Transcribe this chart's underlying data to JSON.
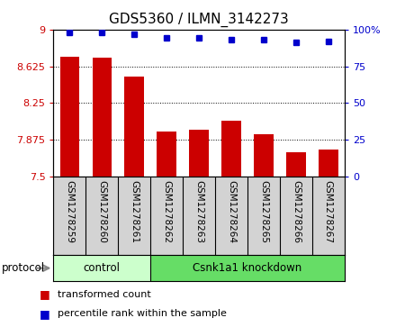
{
  "title": "GDS5360 / ILMN_3142273",
  "samples": [
    "GSM1278259",
    "GSM1278260",
    "GSM1278261",
    "GSM1278262",
    "GSM1278263",
    "GSM1278264",
    "GSM1278265",
    "GSM1278266",
    "GSM1278267"
  ],
  "bar_values": [
    8.72,
    8.71,
    8.52,
    7.96,
    7.98,
    8.07,
    7.93,
    7.75,
    7.78
  ],
  "bar_bottom": 7.5,
  "percentile_values": [
    98,
    98,
    97,
    94,
    94,
    93,
    93,
    91,
    92
  ],
  "ylim_left": [
    7.5,
    9.0
  ],
  "ylim_right": [
    0,
    100
  ],
  "yticks_left": [
    7.5,
    7.875,
    8.25,
    8.625,
    9.0
  ],
  "ytick_labels_left": [
    "7.5",
    "7.875",
    "8.25",
    "8.625",
    "9"
  ],
  "yticks_right": [
    0,
    25,
    50,
    75,
    100
  ],
  "ytick_labels_right": [
    "0",
    "25",
    "50",
    "75",
    "100%"
  ],
  "bar_color": "#cc0000",
  "dot_color": "#0000cc",
  "bar_width": 0.6,
  "control_color": "#ccffcc",
  "knockdown_color": "#66dd66",
  "control_label": "control",
  "control_indices": [
    0,
    1,
    2
  ],
  "knockdown_label": "Csnk1a1 knockdown",
  "knockdown_indices": [
    3,
    4,
    5,
    6,
    7,
    8
  ],
  "protocol_label": "protocol",
  "legend_bar_label": "transformed count",
  "legend_dot_label": "percentile rank within the sample",
  "tick_area_bg": "#d3d3d3"
}
